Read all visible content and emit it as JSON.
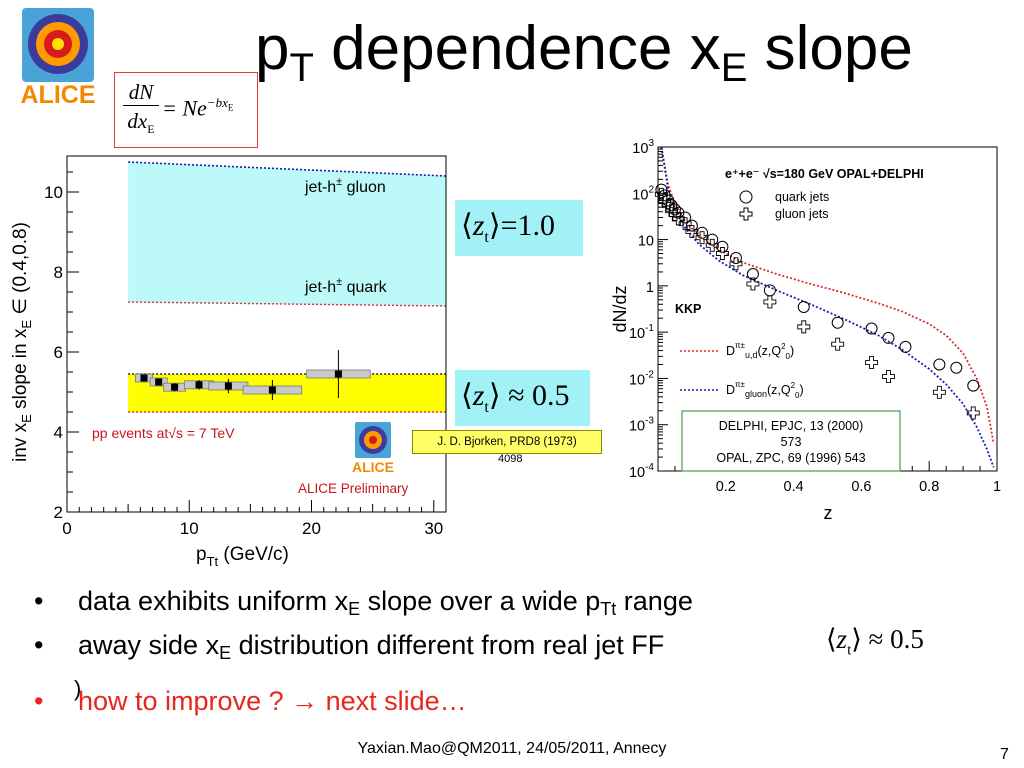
{
  "slide": {
    "title": {
      "base": "p",
      "sub1": "T",
      "middle": " dependence x",
      "sub2": "E",
      "end": " slope"
    },
    "logo_text": "ALICE",
    "formula": {
      "num": "dN",
      "den_base": "dx",
      "den_sub": "E",
      "rhs": "= Ne",
      "exp": "−bx",
      "exp_sub": "E"
    },
    "z_box_1": {
      "z": "z",
      "sub": "t",
      "rel": "=1.0"
    },
    "z_box_2": {
      "z": "z",
      "sub": "t",
      "rel": "≈ 0.5"
    },
    "reference_box": "J. D. Bjorken, PRD8 (1973)",
    "reference_cont": "4098",
    "bullets": [
      {
        "a": "data exhibits uniform x",
        "a_sub": "E",
        "b": " slope over a wide p",
        "b_sub": "Tt",
        "c": " range"
      },
      {
        "a": "away side x",
        "a_sub": "E",
        "b": " distribution different from real jet FF ",
        "tail": ")",
        "z": "z",
        "z_sub": "t",
        "rel": "≈ 0.5"
      },
      {
        "a": "how to improve ? → next slide…"
      }
    ],
    "bullet_marker": "•",
    "footer": "Yaxian.Mao@QM2011, 24/05/2011, Annecy",
    "page_number": "7"
  },
  "chart_data": [
    {
      "type": "scatter",
      "ylabel_parts": {
        "a": "inv x",
        "a_sub": "E",
        "b": " slope in x",
        "b_sub": "E",
        "c": " ∈ (0.4,0.8)"
      },
      "xlabel_parts": {
        "a": "p",
        "a_sub": "Tt",
        "b": " (GeV/c)"
      },
      "xlim": [
        0,
        31
      ],
      "ylim": [
        2,
        10.9
      ],
      "xticks": [
        "0",
        "10",
        "20",
        "30"
      ],
      "yticks": [
        "2",
        "4",
        "6",
        "8",
        "10"
      ],
      "x": [
        6.3,
        7.5,
        8.8,
        10.8,
        13.2,
        16.8,
        22.2
      ],
      "y": [
        5.35,
        5.25,
        5.12,
        5.18,
        5.15,
        5.05,
        5.45
      ],
      "yerr": [
        0.05,
        0.07,
        0.1,
        0.12,
        0.18,
        0.25,
        0.6
      ],
      "gluon_band": {
        "label": "jet-h",
        "label_sup": "±",
        "label_tail": " gluon",
        "x": [
          5,
          31
        ],
        "upper": [
          10.75,
          10.4
        ],
        "lower": [
          7.25,
          7.15
        ]
      },
      "quark_label": {
        "label": "jet-h",
        "label_sup": "±",
        "label_tail": " quark"
      },
      "yellow_band": {
        "x": [
          5,
          31
        ],
        "upper": [
          5.45,
          5.45
        ],
        "lower": [
          4.5,
          4.5
        ]
      },
      "annotation_pp": {
        "a": "pp events at",
        "sqrt": "√",
        "b": "s = 7 TeV"
      },
      "annotation_prelim": "ALICE Preliminary",
      "colors": {
        "gluon_band": "#bdf9f9",
        "yellow_band": "#ffff00",
        "red_text": "#c8161d",
        "blue_dash": "#1a1ab4",
        "red_dash": "#dd2b2b"
      }
    },
    {
      "type": "scatter",
      "xlabel": "z",
      "ylabel": "dN/dz",
      "xlim": [
        0,
        1
      ],
      "yscale": "log",
      "ylim": [
        0.0001,
        1000
      ],
      "xticks": [
        "0.2",
        "0.4",
        "0.6",
        "0.8",
        "1"
      ],
      "yticks": [
        {
          "base": "10",
          "exp": "3"
        },
        {
          "base": "10",
          "exp": "2"
        },
        {
          "base": "10",
          "exp": ""
        },
        {
          "base": "1",
          "exp": ""
        },
        {
          "base": "10",
          "exp": "-1"
        },
        {
          "base": "10",
          "exp": "-2"
        },
        {
          "base": "10",
          "exp": "-3"
        },
        {
          "base": "10",
          "exp": "-4"
        }
      ],
      "legend_title": "e⁺+e⁻ √s=180 GeV OPAL+DELPHI",
      "series": [
        {
          "name": "quark jets",
          "marker": "circle",
          "x": [
            0.01,
            0.02,
            0.03,
            0.04,
            0.05,
            0.06,
            0.08,
            0.1,
            0.13,
            0.16,
            0.19,
            0.23,
            0.28,
            0.33,
            0.43,
            0.53,
            0.63,
            0.68,
            0.73,
            0.83,
            0.88,
            0.93
          ],
          "y": [
            120,
            90,
            70,
            55,
            45,
            38,
            30,
            20,
            14,
            10,
            7,
            4,
            1.8,
            0.8,
            0.35,
            0.16,
            0.12,
            0.075,
            0.048,
            0.02,
            0.017,
            0.007
          ]
        },
        {
          "name": "gluon jets",
          "marker": "cross",
          "x": [
            0.01,
            0.02,
            0.03,
            0.04,
            0.05,
            0.06,
            0.08,
            0.1,
            0.13,
            0.16,
            0.19,
            0.23,
            0.28,
            0.33,
            0.43,
            0.53,
            0.63,
            0.68,
            0.83,
            0.93
          ],
          "y": [
            95,
            70,
            55,
            42,
            35,
            28,
            22,
            15,
            11,
            7.5,
            5,
            3,
            1.1,
            0.45,
            0.13,
            0.055,
            0.022,
            0.011,
            0.005,
            0.0018
          ]
        }
      ],
      "curves": [
        {
          "name": "D",
          "name_sup": "π±",
          "name_sub": "u,d",
          "args": "(z,Q",
          "args_sup": "2",
          "args_sub": "0",
          "args_end": ")",
          "color": "#dd2b2b",
          "x": [
            0.01,
            0.03,
            0.05,
            0.08,
            0.12,
            0.18,
            0.25,
            0.35,
            0.45,
            0.55,
            0.65,
            0.72,
            0.8,
            0.85,
            0.9,
            0.94,
            0.97,
            0.99
          ],
          "y": [
            1000,
            150,
            60,
            25,
            12,
            6,
            3.2,
            1.8,
            1.1,
            0.7,
            0.42,
            0.28,
            0.15,
            0.085,
            0.035,
            0.01,
            0.0025,
            0.0004
          ]
        },
        {
          "name": "D",
          "name_sup": "π±",
          "name_sub": "gluon",
          "args": "(z,Q",
          "args_sup": "2",
          "args_sub": "0",
          "args_end": ")",
          "color": "#1a1ab4",
          "x": [
            0.01,
            0.03,
            0.05,
            0.08,
            0.12,
            0.18,
            0.25,
            0.35,
            0.45,
            0.55,
            0.65,
            0.72,
            0.8,
            0.85,
            0.9,
            0.94,
            0.97,
            0.99
          ],
          "y": [
            1000,
            120,
            45,
            18,
            8,
            3.5,
            1.7,
            0.8,
            0.4,
            0.19,
            0.085,
            0.042,
            0.016,
            0.0075,
            0.0028,
            0.0009,
            0.0003,
            0.00012
          ]
        }
      ],
      "kkp_label": "KKP",
      "citation": [
        "DELPHI, EPJC,  13 (2000)",
        "573",
        "OPAL, ZPC, 69 (1996) 543"
      ]
    }
  ]
}
